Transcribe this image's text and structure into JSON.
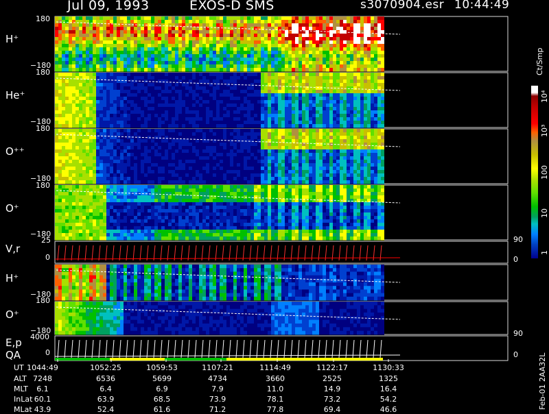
{
  "header": {
    "date": "Jul 09, 1993",
    "instrument": "EXOS-D SMS",
    "file": "s3070904.esr",
    "time": "10:44:49"
  },
  "colorbar": {
    "unit": "Ct/Smp",
    "ticks": [
      "1",
      "10",
      "100",
      "10³",
      "10⁴"
    ]
  },
  "chart_data": {
    "type": "heatmap",
    "panels": [
      {
        "label": "H⁺",
        "ymax": "180",
        "ymin": "−180"
      },
      {
        "label": "He⁺",
        "ymax": "180",
        "ymin": "−180"
      },
      {
        "label": "O⁺⁺",
        "ymax": "180",
        "ymin": "−180"
      },
      {
        "label": "O⁺",
        "ymax": "180",
        "ymin": "−180"
      },
      {
        "label": "V,r",
        "ymax": "25",
        "ymin": "0",
        "right_top": "90",
        "right_bottom": "0"
      },
      {
        "label": "H⁺",
        "ymin": "−180"
      },
      {
        "label": "O⁺",
        "ymax": "180",
        "ymin": "−180"
      },
      {
        "label": "E,p",
        "label2": "QA",
        "ymax": "4000",
        "ymin": "0",
        "right_top": "90",
        "right_bottom": "0"
      }
    ],
    "rows": [
      {
        "name": "UT",
        "values": [
          "1044:49",
          "1052:25",
          "1059:53",
          "1107:21",
          "1114:49",
          "1122:17",
          "1130:33"
        ]
      },
      {
        "name": "ALT",
        "values": [
          "7248",
          "6536",
          "5699",
          "4734",
          "3660",
          "2525",
          "1325"
        ]
      },
      {
        "name": "MLT",
        "values": [
          "6.1",
          "6.4",
          "6.9",
          "7.9",
          "11.0",
          "14.9",
          "16.4"
        ]
      },
      {
        "name": "InLat",
        "values": [
          "60.1",
          "63.9",
          "68.5",
          "73.9",
          "78.1",
          "73.2",
          "54.2"
        ]
      },
      {
        "name": "MLat",
        "values": [
          "43.9",
          "52.4",
          "61.6",
          "71.2",
          "77.8",
          "69.4",
          "46.6"
        ]
      }
    ]
  },
  "footer": {
    "stamp": "Feb-01 2AA32L"
  }
}
